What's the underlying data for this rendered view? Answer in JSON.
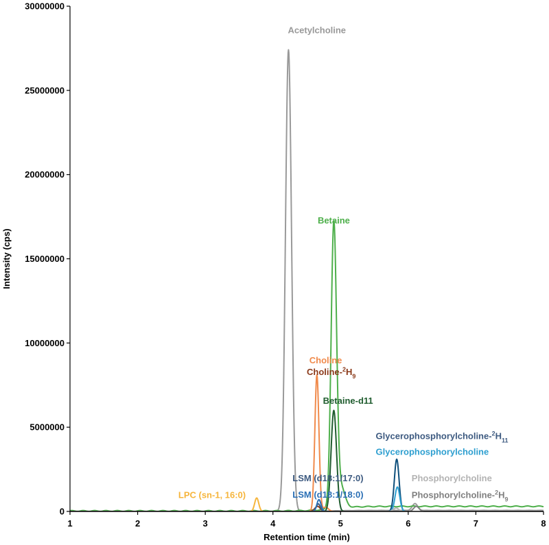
{
  "chart_data": {
    "type": "line",
    "title": "",
    "xlabel": "Retention time (min)",
    "ylabel": "Intensity (cps)",
    "xlim": [
      1,
      8
    ],
    "ylim": [
      0,
      30000000
    ],
    "xticks": [
      "1",
      "2",
      "3",
      "4",
      "5",
      "6",
      "7",
      "8"
    ],
    "yticks": [
      "0",
      "5000000",
      "10000000",
      "15000000",
      "20000000",
      "25000000",
      "30000000"
    ],
    "grid": false,
    "legend": "none",
    "series": [
      {
        "name": "Acetylcholine",
        "color": "#999999",
        "baseline": 60000,
        "peaks": [
          {
            "x": 4.23,
            "height": 27400000,
            "width": 0.045
          },
          {
            "x": 6.1,
            "height": 400000,
            "width": 0.04
          }
        ]
      },
      {
        "name": "Betaine",
        "color": "#4daf4a",
        "baseline": 300000,
        "peaks": [
          {
            "x": 4.9,
            "height": 16750000,
            "width": 0.04
          },
          {
            "x": 5.0,
            "height": 1300000,
            "width": 0.06
          }
        ]
      },
      {
        "name": "Choline",
        "color": "#f08a4b",
        "baseline": 0,
        "peaks": [
          {
            "x": 4.65,
            "height": 8100000,
            "width": 0.03
          },
          {
            "x": 4.78,
            "height": 250000,
            "width": 0.04
          }
        ]
      },
      {
        "name": "Choline-2H9",
        "color": "#8b3a1a",
        "baseline": 0,
        "peaks": [
          {
            "x": 4.66,
            "height": 300000,
            "width": 0.04
          }
        ]
      },
      {
        "name": "Betaine-d11",
        "color": "#1f5c2e",
        "baseline": 0,
        "peaks": [
          {
            "x": 4.9,
            "height": 6000000,
            "width": 0.04
          }
        ]
      },
      {
        "name": "LPC (sn-1, 16:0)",
        "color": "#f6b53c",
        "baseline": 0,
        "peaks": [
          {
            "x": 3.76,
            "height": 800000,
            "width": 0.03
          }
        ]
      },
      {
        "name": "LSM (d18:1/17:0)",
        "color": "#3d5a80",
        "baseline": 0,
        "peaks": [
          {
            "x": 4.67,
            "height": 450000,
            "width": 0.03
          }
        ]
      },
      {
        "name": "LSM (d18:1/18:0)",
        "color": "#2a6fb5",
        "baseline": 0,
        "peaks": [
          {
            "x": 4.68,
            "height": 700000,
            "width": 0.03
          }
        ]
      },
      {
        "name": "Glycerophosphorylcholine-2H11",
        "color": "#0d4f7c",
        "baseline": 0,
        "peaks": [
          {
            "x": 5.83,
            "height": 3100000,
            "width": 0.035
          }
        ]
      },
      {
        "name": "Glycerophosphorylcholine",
        "color": "#2e9fd0",
        "baseline": 0,
        "peaks": [
          {
            "x": 5.84,
            "height": 1450000,
            "width": 0.035
          }
        ]
      },
      {
        "name": "Phosphorylcholine",
        "color": "#b3b3b3",
        "baseline": 0,
        "peaks": [
          {
            "x": 5.82,
            "height": 200000,
            "width": 0.04
          }
        ]
      },
      {
        "name": "Phosphorylcholine-2H9",
        "color": "#7f7f7f",
        "baseline": 0,
        "peaks": [
          {
            "x": 6.12,
            "height": 300000,
            "width": 0.04
          }
        ]
      }
    ],
    "annotations": [
      {
        "text": "Acetylcholine",
        "color": "#999999",
        "x": 4.65,
        "y": 28400000,
        "anchor": "middle"
      },
      {
        "text": "Betaine",
        "color": "#4daf4a",
        "x": 4.9,
        "y": 17100000,
        "anchor": "middle"
      },
      {
        "text": "Choline",
        "color": "#f08a4b",
        "x": 4.78,
        "y": 8800000,
        "anchor": "middle"
      },
      {
        "text": "Choline-",
        "sup": "2",
        "tail": "H",
        "sub": "9",
        "color": "#8b3a1a",
        "x": 4.5,
        "y": 8100000,
        "anchor": "start"
      },
      {
        "text": "Betaine-d11",
        "color": "#1f5c2e",
        "x": 4.74,
        "y": 6400000,
        "anchor": "start"
      },
      {
        "text": "LPC (sn-1, 16:0)",
        "color": "#f6b53c",
        "x": 3.1,
        "y": 800000,
        "anchor": "middle"
      },
      {
        "text": "LSM (d18:1/17:0)",
        "color": "#3d5a80",
        "x": 4.29,
        "y": 1800000,
        "anchor": "start"
      },
      {
        "text": "LSM (d18:1/18:0)",
        "color": "#2a6fb5",
        "x": 4.29,
        "y": 820000,
        "anchor": "start"
      },
      {
        "text": "Glycerophosphorylcholine-",
        "sup": "2",
        "tail": "H",
        "sub": "11",
        "color": "#3d5a80",
        "x": 5.52,
        "y": 4300000,
        "anchor": "start"
      },
      {
        "text": "Glycerophosphorylcholine",
        "color": "#2e9fd0",
        "x": 5.52,
        "y": 3350000,
        "anchor": "start"
      },
      {
        "text": "Phosphorylcholine",
        "color": "#b3b3b3",
        "x": 6.05,
        "y": 1800000,
        "anchor": "start"
      },
      {
        "text": "Phosphorylcholine-",
        "sup": "2",
        "tail": "H",
        "sub": "9",
        "color": "#7f7f7f",
        "x": 6.05,
        "y": 800000,
        "anchor": "start"
      }
    ]
  }
}
